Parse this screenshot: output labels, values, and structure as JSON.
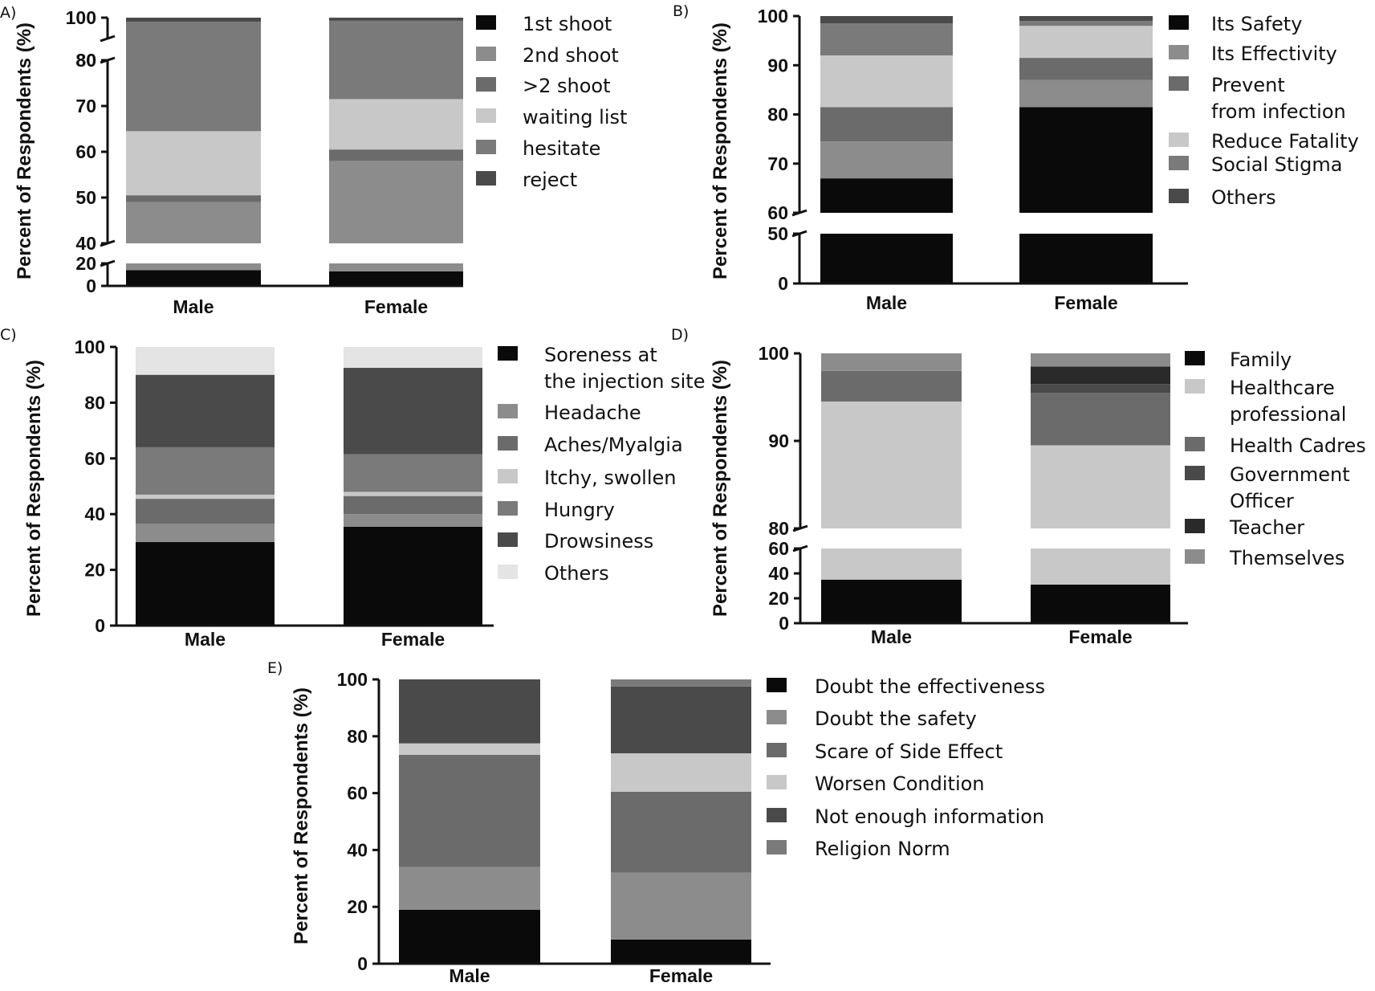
{
  "chart_data": [
    {
      "panel": "A)",
      "type": "bar",
      "stacked": true,
      "ylabel": "Percent of Respondents (%)",
      "categories": [
        "Male",
        "Female"
      ],
      "y_axis_segments": [
        {
          "range": [
            0,
            20
          ],
          "ticks": [
            "0",
            "20"
          ]
        },
        {
          "range": [
            40,
            80
          ],
          "ticks": [
            "40",
            "50",
            "60",
            "70",
            "80"
          ]
        },
        {
          "range": [
            80,
            100
          ],
          "ticks": [
            "80",
            "100"
          ]
        }
      ],
      "series": [
        {
          "name": "1st shoot",
          "color": "#0a0a0a",
          "values": [
            14,
            13
          ]
        },
        {
          "name": "2nd shoot",
          "color": "#8c8c8c",
          "values": [
            35,
            45
          ]
        },
        {
          "name": ">2 shoot",
          "color": "#6b6b6b",
          "values": [
            1.5,
            2.5
          ]
        },
        {
          "name": "waiting list",
          "color": "#c8c8c8",
          "values": [
            14,
            11
          ]
        },
        {
          "name": "hesitate",
          "color": "#7a7a7a",
          "values": [
            31.5,
            25.5
          ]
        },
        {
          "name": "reject",
          "color": "#4a4a4a",
          "values": [
            4,
            3
          ]
        }
      ]
    },
    {
      "panel": "B)",
      "type": "bar",
      "stacked": true,
      "ylabel": "Percent of Respondents (%)",
      "categories": [
        "Male",
        "Female"
      ],
      "y_axis_segments": [
        {
          "range": [
            0,
            50
          ],
          "ticks": [
            "0",
            "50"
          ]
        },
        {
          "range": [
            60,
            100
          ],
          "ticks": [
            "60",
            "70",
            "80",
            "90",
            "100"
          ]
        }
      ],
      "series": [
        {
          "name": "Its Safety",
          "color": "#0a0a0a",
          "values": [
            67,
            81.5
          ]
        },
        {
          "name": "Its Effectivity",
          "color": "#8c8c8c",
          "values": [
            7.5,
            5.5
          ]
        },
        {
          "name": "Prevent from infection",
          "color": "#6b6b6b",
          "values": [
            7,
            4.5
          ]
        },
        {
          "name": "Reduce Fatality",
          "color": "#c8c8c8",
          "values": [
            10.5,
            6.5
          ]
        },
        {
          "name": "Social Stigma",
          "color": "#7a7a7a",
          "values": [
            6.5,
            1
          ]
        },
        {
          "name": "Others",
          "color": "#4a4a4a",
          "values": [
            1.5,
            1
          ]
        }
      ]
    },
    {
      "panel": "C)",
      "type": "bar",
      "stacked": true,
      "ylabel": "Percent of Respondents (%)",
      "categories": [
        "Male",
        "Female"
      ],
      "ylim": [
        0,
        100
      ],
      "ticks": [
        "0",
        "20",
        "40",
        "60",
        "80",
        "100"
      ],
      "series": [
        {
          "name": "Soreness at the injection site",
          "color": "#0a0a0a",
          "values": [
            30,
            35.5
          ]
        },
        {
          "name": "Headache",
          "color": "#8c8c8c",
          "values": [
            6.5,
            4.5
          ]
        },
        {
          "name": "Aches/Myalgia",
          "color": "#6b6b6b",
          "values": [
            9,
            6.5
          ]
        },
        {
          "name": "Itchy, swollen",
          "color": "#c8c8c8",
          "values": [
            1.5,
            1.5
          ]
        },
        {
          "name": "Hungry",
          "color": "#7a7a7a",
          "values": [
            17,
            13.5
          ]
        },
        {
          "name": "Drowsiness",
          "color": "#4a4a4a",
          "values": [
            26,
            31
          ]
        },
        {
          "name": "Others",
          "color": "#e4e4e4",
          "values": [
            10,
            7.5
          ]
        }
      ]
    },
    {
      "panel": "D)",
      "type": "bar",
      "stacked": true,
      "ylabel": "Percent of Respondents (%)",
      "categories": [
        "Male",
        "Female"
      ],
      "y_axis_segments": [
        {
          "range": [
            0,
            60
          ],
          "ticks": [
            "0",
            "20",
            "40",
            "60"
          ]
        },
        {
          "range": [
            80,
            100
          ],
          "ticks": [
            "80",
            "90",
            "100"
          ]
        }
      ],
      "series": [
        {
          "name": "Family",
          "color": "#0a0a0a",
          "values": [
            35,
            31
          ]
        },
        {
          "name": "Healthcare professional",
          "color": "#c8c8c8",
          "values": [
            59.5,
            58.5
          ]
        },
        {
          "name": "Health Cadres",
          "color": "#6b6b6b",
          "values": [
            3.5,
            6
          ]
        },
        {
          "name": "Government Officer",
          "color": "#4a4a4a",
          "values": [
            0,
            1
          ]
        },
        {
          "name": "Teacher",
          "color": "#2a2a2a",
          "values": [
            0,
            2
          ]
        },
        {
          "name": "Themselves",
          "color": "#8c8c8c",
          "values": [
            2,
            1.5
          ]
        }
      ]
    },
    {
      "panel": "E)",
      "type": "bar",
      "stacked": true,
      "ylabel": "Percent of Respondents (%)",
      "categories": [
        "Male",
        "Female"
      ],
      "ylim": [
        0,
        100
      ],
      "ticks": [
        "0",
        "20",
        "40",
        "60",
        "80",
        "100"
      ],
      "series": [
        {
          "name": "Doubt the effectiveness",
          "color": "#0a0a0a",
          "values": [
            19,
            8.5
          ]
        },
        {
          "name": "Doubt the safety",
          "color": "#8c8c8c",
          "values": [
            15,
            23.5
          ]
        },
        {
          "name": "Scare of Side Effect",
          "color": "#6b6b6b",
          "values": [
            39.5,
            28.5
          ]
        },
        {
          "name": "Worsen Condition",
          "color": "#c8c8c8",
          "values": [
            4,
            13.5
          ]
        },
        {
          "name": "Not enough information",
          "color": "#4a4a4a",
          "values": [
            22.5,
            23.5
          ]
        },
        {
          "name": "Religion Norm",
          "color": "#7a7a7a",
          "values": [
            0,
            2.5
          ]
        }
      ]
    }
  ]
}
